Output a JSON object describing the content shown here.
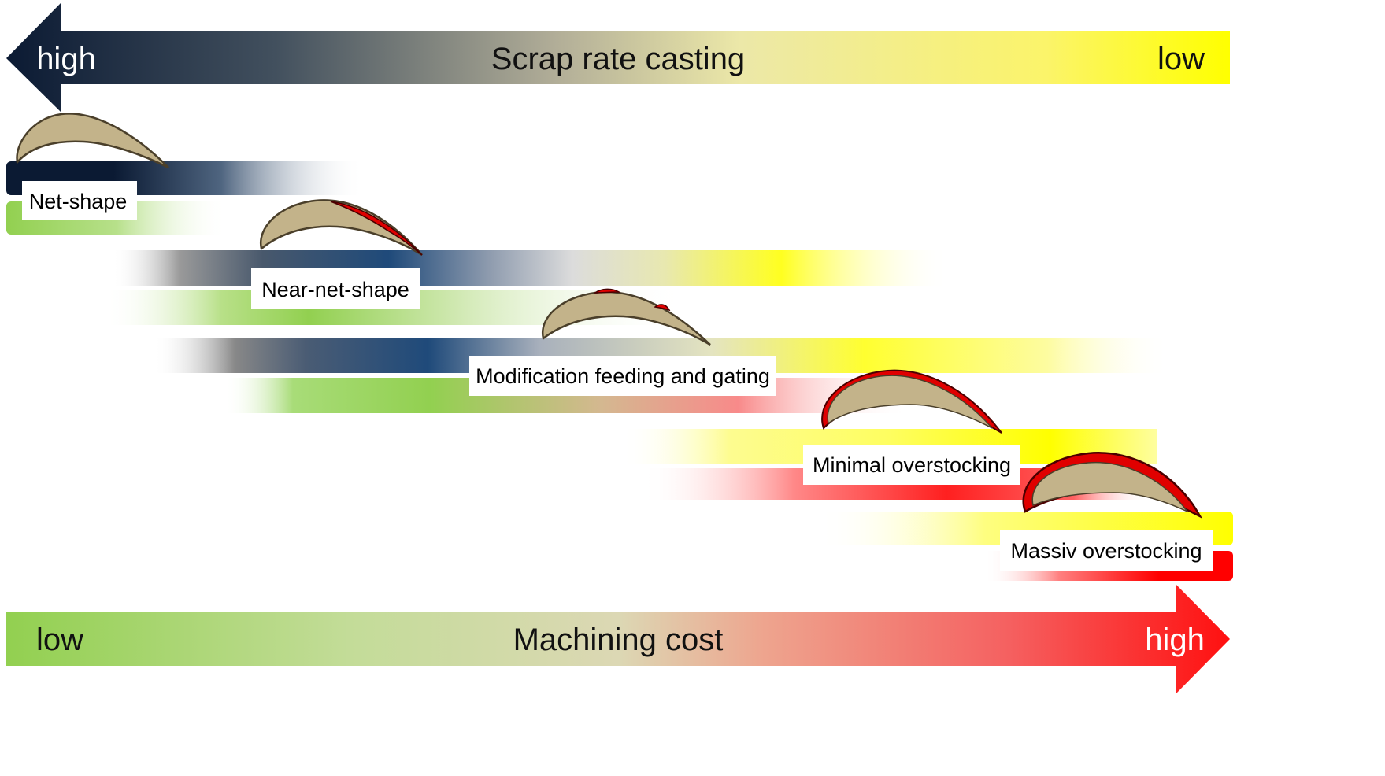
{
  "top_arrow": {
    "left_label": "high",
    "center_label": "Scrap rate casting",
    "right_label": "low"
  },
  "bottom_arrow": {
    "left_label": "low",
    "center_label": "Machining cost",
    "right_label": "high"
  },
  "stages": [
    {
      "label": "Net-shape",
      "overstock": "none"
    },
    {
      "label": "Near-net-shape",
      "overstock": "partial"
    },
    {
      "label": "Modification feeding and gating",
      "overstock": "spots"
    },
    {
      "label": "Minimal overstocking",
      "overstock": "thin"
    },
    {
      "label": "Massiv overstocking",
      "overstock": "thick"
    }
  ],
  "colors": {
    "scrap_high": "#0b1a33",
    "scrap_mid": "#1f4a7a",
    "scrap_low": "#ffff00",
    "cost_low": "#92d050",
    "cost_high": "#ff0000",
    "blade_fill": "#c3b38a",
    "overstock": "#e00000"
  }
}
